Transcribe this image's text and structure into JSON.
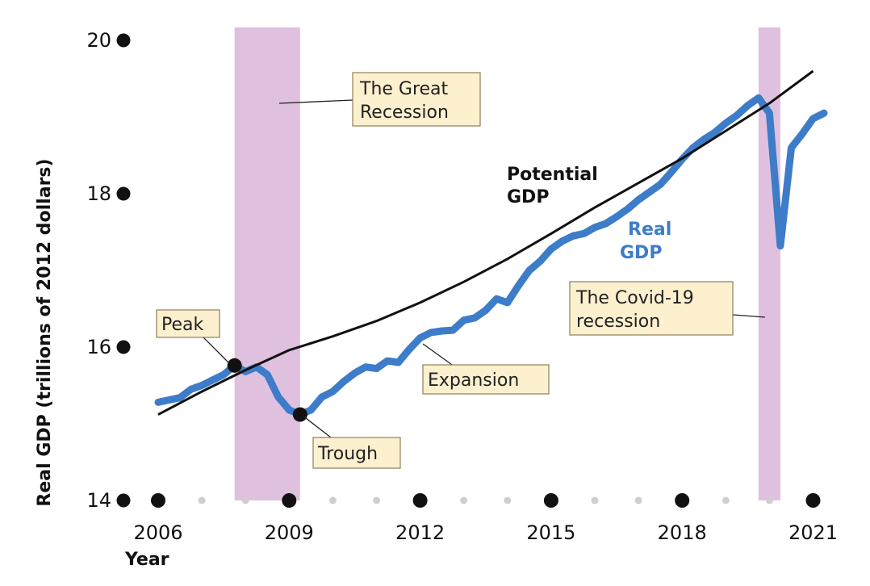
{
  "chart_data": {
    "type": "line",
    "ylabel": "Real GDP (trillions of 2012 dollars)",
    "xlabel": "Year",
    "xlim": [
      2005.5,
      2021.8
    ],
    "ylim": [
      14,
      20.3
    ],
    "y_ticks": [
      "14",
      "16",
      "18",
      "20"
    ],
    "x_ticks": [
      "2006",
      "2009",
      "2012",
      "2015",
      "2018",
      "2021"
    ],
    "grid": false,
    "recessions": [
      {
        "name": "The Great Recession",
        "start": 2007.75,
        "end": 2009.25
      },
      {
        "name": "The Covid-19 recession",
        "start": 2019.75,
        "end": 2020.25
      }
    ],
    "series": [
      {
        "name": "Potential GDP",
        "color": "#111111",
        "x": [
          2006,
          2007,
          2008,
          2009,
          2010,
          2011,
          2012,
          2013,
          2014,
          2015,
          2016,
          2017,
          2018,
          2019,
          2020,
          2021
        ],
        "values": [
          15.12,
          15.42,
          15.7,
          15.96,
          16.14,
          16.34,
          16.58,
          16.85,
          17.15,
          17.48,
          17.82,
          18.14,
          18.46,
          18.82,
          19.18,
          19.6
        ]
      },
      {
        "name": "Real GDP",
        "color": "#3d7cc9",
        "x": [
          2006.0,
          2006.25,
          2006.5,
          2006.75,
          2007.0,
          2007.25,
          2007.5,
          2007.75,
          2008.0,
          2008.25,
          2008.5,
          2008.75,
          2009.0,
          2009.25,
          2009.5,
          2009.75,
          2010.0,
          2010.25,
          2010.5,
          2010.75,
          2011.0,
          2011.25,
          2011.5,
          2011.75,
          2012.0,
          2012.25,
          2012.5,
          2012.75,
          2013.0,
          2013.25,
          2013.5,
          2013.75,
          2014.0,
          2014.25,
          2014.5,
          2014.75,
          2015.0,
          2015.25,
          2015.5,
          2015.75,
          2016.0,
          2016.25,
          2016.5,
          2016.75,
          2017.0,
          2017.25,
          2017.5,
          2017.75,
          2018.0,
          2018.25,
          2018.5,
          2018.75,
          2019.0,
          2019.25,
          2019.5,
          2019.75,
          2020.0,
          2020.25,
          2020.5,
          2020.75,
          2021.0,
          2021.25
        ],
        "values": [
          15.28,
          15.31,
          15.34,
          15.45,
          15.5,
          15.57,
          15.64,
          15.76,
          15.68,
          15.74,
          15.64,
          15.35,
          15.18,
          15.12,
          15.18,
          15.35,
          15.42,
          15.55,
          15.66,
          15.74,
          15.72,
          15.82,
          15.8,
          15.97,
          16.12,
          16.19,
          16.21,
          16.22,
          16.35,
          16.38,
          16.48,
          16.63,
          16.58,
          16.8,
          17.0,
          17.12,
          17.28,
          17.38,
          17.45,
          17.48,
          17.56,
          17.61,
          17.7,
          17.8,
          17.92,
          18.02,
          18.12,
          18.28,
          18.45,
          18.6,
          18.71,
          18.8,
          18.92,
          19.02,
          19.15,
          19.25,
          19.05,
          17.32,
          18.6,
          18.78,
          18.98,
          19.05
        ]
      }
    ],
    "series_labels": {
      "potential": [
        "Potential",
        "GDP"
      ],
      "real": [
        "Real",
        "GDP"
      ]
    },
    "annotations": {
      "great_recession": [
        "The Great",
        "Recession"
      ],
      "covid": [
        "The Covid-19",
        "recession"
      ],
      "peak": "Peak",
      "trough": "Trough",
      "expansion": "Expansion"
    },
    "points": {
      "peak": {
        "x": 2007.75,
        "y": 15.76
      },
      "trough": {
        "x": 2009.25,
        "y": 15.12
      }
    },
    "colors": {
      "real": "#3d7cc9",
      "potential": "#111111",
      "recession_band": "#dfc0de",
      "annotation_box": "#fdf0cf"
    }
  }
}
